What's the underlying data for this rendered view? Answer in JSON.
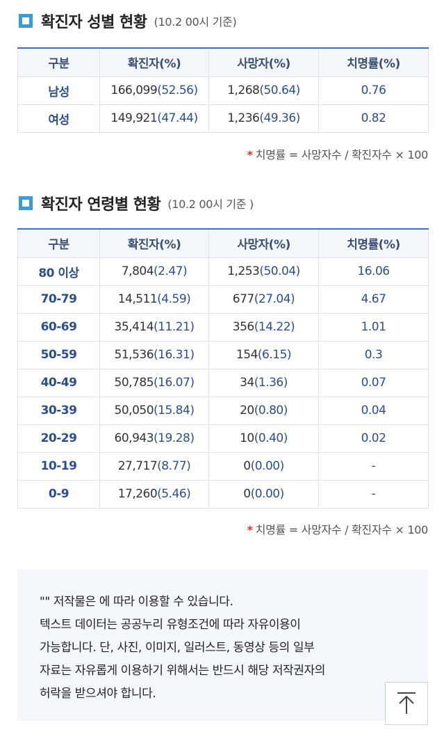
{
  "gender_section": {
    "title": "확진자 성별 현황",
    "note": "(10.2 00시 기준)",
    "headers": [
      "구분",
      "확진자(%)",
      "사망자(%)",
      "치명률(%)"
    ],
    "rows": [
      {
        "label": "남성",
        "cases": "166,099",
        "cases_pct": "(52.56)",
        "deaths": "1,268",
        "deaths_pct": "(50.64)",
        "rate": "0.76"
      },
      {
        "label": "여성",
        "cases": "149,921",
        "cases_pct": "(47.44)",
        "deaths": "1,236",
        "deaths_pct": "(49.36)",
        "rate": "0.82"
      }
    ],
    "footnote_star": "*",
    "footnote": "치명률 = 사망자수 / 확진자수 × 100"
  },
  "age_section": {
    "title": "확진자 연령별 현황",
    "note": "(10.2 00시 기준 )",
    "headers": [
      "구분",
      "확진자(%)",
      "사망자(%)",
      "치명률(%)"
    ],
    "rows": [
      {
        "label": "80 이상",
        "cases": "7,804",
        "cases_pct": "(2.47)",
        "deaths": "1,253",
        "deaths_pct": "(50.04)",
        "rate": "16.06"
      },
      {
        "label": "70-79",
        "cases": "14,511",
        "cases_pct": "(4.59)",
        "deaths": "677",
        "deaths_pct": "(27.04)",
        "rate": "4.67"
      },
      {
        "label": "60-69",
        "cases": "35,414",
        "cases_pct": "(11.21)",
        "deaths": "356",
        "deaths_pct": "(14.22)",
        "rate": "1.01"
      },
      {
        "label": "50-59",
        "cases": "51,536",
        "cases_pct": "(16.31)",
        "deaths": "154",
        "deaths_pct": "(6.15)",
        "rate": "0.3"
      },
      {
        "label": "40-49",
        "cases": "50,785",
        "cases_pct": "(16.07)",
        "deaths": "34",
        "deaths_pct": "(1.36)",
        "rate": "0.07"
      },
      {
        "label": "30-39",
        "cases": "50,050",
        "cases_pct": "(15.84)",
        "deaths": "20",
        "deaths_pct": "(0.80)",
        "rate": "0.04"
      },
      {
        "label": "20-29",
        "cases": "60,943",
        "cases_pct": "(19.28)",
        "deaths": "10",
        "deaths_pct": "(0.40)",
        "rate": "0.02"
      },
      {
        "label": "10-19",
        "cases": "27,717",
        "cases_pct": "(8.77)",
        "deaths": "0",
        "deaths_pct": "(0.00)",
        "rate": "-"
      },
      {
        "label": "0-9",
        "cases": "17,260",
        "cases_pct": "(5.46)",
        "deaths": "0",
        "deaths_pct": "(0.00)",
        "rate": "-"
      }
    ],
    "footnote_star": "*",
    "footnote": "치명률 = 사망자수 / 확진자수 × 100"
  },
  "license": {
    "lines": [
      "\"\" 저작물은 에 따라 이용할 수 있습니다.",
      "텍스트 데이터는 공공누리 유형조건에 따라 자유이용이",
      "가능합니다. 단, 사진, 이미지, 일러스트, 동영상 등의 일부",
      "자료는 자유롭게 이용하기 위해서는 반드시 해당 저작권자의",
      "허락을 받으셔야 합니다."
    ]
  },
  "top_button": {
    "icon": "arrow-up-to-top-icon"
  },
  "colors": {
    "accent": "#3f6cb3",
    "label": "#2c4f8c",
    "icon": "#3a9bd5",
    "header_bg": "#f3f6fb"
  }
}
